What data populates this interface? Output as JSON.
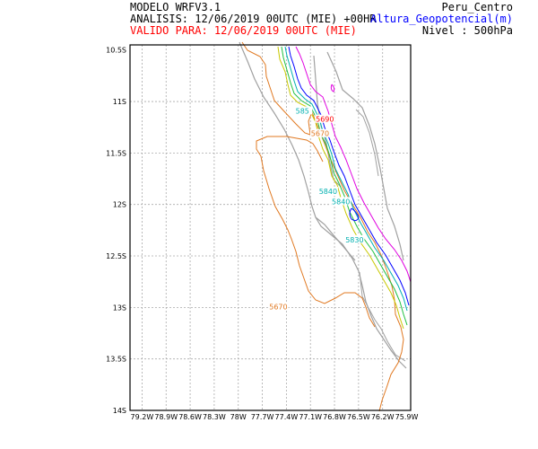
{
  "header": {
    "model": "MODELO WRFV3.1",
    "analysis": "ANALISIS: 12/06/2019 00UTC (MIE) +00HR",
    "valid": "VALIDO PARA: 12/06/2019 00UTC (MIE)",
    "region": "Peru_Centro",
    "variable": "Altura_Geopotencial(m)",
    "level": "Nivel : 500hPa"
  },
  "colors": {
    "valid": "#ff0000",
    "variable": "#0000ff",
    "grid": "#aaaaaa",
    "coast": "#a0a0a0",
    "contour_5670": "#e07820"
  },
  "axes": {
    "lat_labels": [
      "10.5S",
      "11S",
      "11.5S",
      "12S",
      "12.5S",
      "13S",
      "13.5S",
      "14S"
    ],
    "lon_labels": [
      "79.2W",
      "78.9W",
      "78.6W",
      "78.3W",
      "78W",
      "77.7W",
      "77.4W",
      "77.1W",
      "76.8W",
      "76.5W",
      "76.2W",
      "75.9W"
    ]
  },
  "contour_labels": [
    {
      "text": "5670",
      "color": "#e07820",
      "lat": -13.0,
      "lon": -77.5
    },
    {
      "text": "5670",
      "color": "#e07820",
      "lat": -11.32,
      "lon": -76.98
    },
    {
      "text": "5690",
      "color": "#ff0000",
      "lat": -11.18,
      "lon": -76.92
    },
    {
      "text": "5840",
      "color": "#00b0b0",
      "lat": -11.88,
      "lon": -76.88
    },
    {
      "text": "5840",
      "color": "#00b0b0",
      "lat": -11.98,
      "lon": -76.72
    },
    {
      "text": "5830",
      "color": "#00b0b0",
      "lat": -12.35,
      "lon": -76.55
    },
    {
      "text": "585",
      "color": "#00b0b0",
      "lat": -11.1,
      "lon": -77.2
    }
  ]
}
